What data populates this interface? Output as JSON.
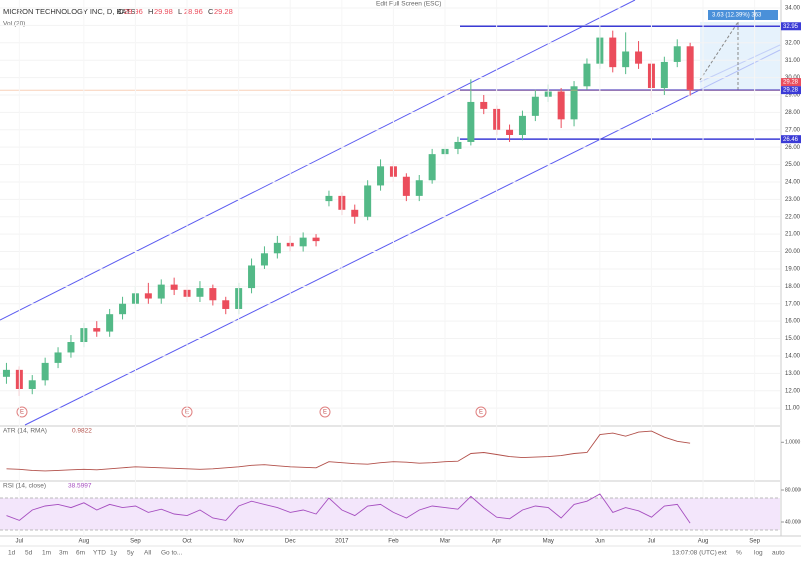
{
  "chart_data": {
    "type": "candlestick",
    "title": "MICRON TECHNOLOGY INC, D, BATS",
    "volume_label": "Vol (20)",
    "fullscreen_hint": "Edit Full Screen (ESC)",
    "ohlc_header": {
      "labels": [
        "O",
        "H",
        "L",
        "C"
      ],
      "values": [
        29.96,
        29.98,
        28.96,
        29.28
      ]
    },
    "categories": [
      null,
      "Jul",
      null,
      null,
      null,
      null,
      "Aug",
      null,
      null,
      null,
      "Sep",
      null,
      null,
      null,
      "Oct",
      null,
      null,
      null,
      "Nov",
      null,
      null,
      null,
      "Dec",
      null,
      null,
      null,
      "2017",
      null,
      null,
      null,
      "Feb",
      null,
      null,
      null,
      "Mar",
      null,
      null,
      null,
      "Apr",
      null,
      null,
      null,
      "May",
      null,
      null,
      null,
      "Jun",
      null,
      null,
      null,
      "Jul",
      null,
      null,
      null,
      "Aug",
      null,
      null,
      null,
      "Sep"
    ],
    "open": [
      12.8,
      13.2,
      12.1,
      12.6,
      13.6,
      14.2,
      14.8,
      15.6,
      15.4,
      16.4,
      17.0,
      17.6,
      17.3,
      18.1,
      17.8,
      17.4,
      17.9,
      17.2,
      16.7,
      17.9,
      19.2,
      19.9,
      20.5,
      20.3,
      20.8,
      22.9,
      23.2,
      22.4,
      22.0,
      23.8,
      24.9,
      24.3,
      23.2,
      24.1,
      25.6,
      25.9,
      26.3,
      28.6,
      28.2,
      27.0,
      26.7,
      27.8,
      28.9,
      29.2,
      27.6,
      29.5,
      30.8,
      32.3,
      30.6,
      31.5,
      30.8,
      29.4,
      30.9,
      31.8,
      null,
      null,
      null,
      null,
      null
    ],
    "high": [
      13.6,
      13.4,
      12.9,
      13.9,
      14.5,
      15.2,
      15.9,
      16.0,
      16.7,
      17.4,
      18.0,
      18.2,
      18.4,
      18.5,
      18.1,
      18.3,
      18.1,
      17.4,
      18.2,
      19.6,
      20.3,
      20.9,
      20.9,
      21.1,
      21.0,
      23.5,
      23.4,
      22.7,
      24.1,
      25.3,
      25.2,
      24.5,
      24.4,
      25.9,
      26.2,
      26.6,
      29.9,
      29.0,
      28.4,
      27.3,
      28.1,
      29.3,
      29.6,
      29.4,
      29.8,
      31.1,
      32.9,
      32.7,
      32.6,
      32.1,
      31.0,
      31.2,
      32.2,
      32.0,
      null,
      null,
      null,
      null,
      null
    ],
    "low": [
      12.4,
      11.7,
      11.8,
      12.3,
      13.3,
      13.9,
      14.5,
      15.1,
      15.1,
      16.1,
      16.7,
      17.0,
      17.0,
      17.5,
      17.1,
      17.1,
      16.9,
      16.4,
      16.4,
      17.6,
      19.0,
      19.6,
      20.0,
      20.0,
      20.3,
      22.6,
      22.1,
      21.6,
      21.8,
      23.5,
      24.0,
      22.9,
      22.9,
      23.9,
      25.3,
      25.6,
      26.1,
      27.9,
      26.7,
      26.3,
      26.4,
      27.5,
      28.6,
      27.1,
      27.2,
      29.3,
      30.5,
      30.3,
      30.2,
      30.5,
      28.8,
      29.0,
      30.6,
      28.96,
      null,
      null,
      null,
      null,
      null
    ],
    "close": [
      13.2,
      12.1,
      12.6,
      13.6,
      14.2,
      14.8,
      15.6,
      15.4,
      16.4,
      17.0,
      17.6,
      17.3,
      18.1,
      17.8,
      17.4,
      17.9,
      17.2,
      16.7,
      17.9,
      19.2,
      19.9,
      20.5,
      20.3,
      20.8,
      20.6,
      23.2,
      22.4,
      22.0,
      23.8,
      24.9,
      24.3,
      23.2,
      24.1,
      25.6,
      25.9,
      26.3,
      28.6,
      28.2,
      27.0,
      26.7,
      27.8,
      28.9,
      29.2,
      27.6,
      29.5,
      30.8,
      32.3,
      30.6,
      31.5,
      30.8,
      29.4,
      30.9,
      31.8,
      29.28,
      null,
      null,
      null,
      null,
      null
    ],
    "up_color": "#53b987",
    "down_color": "#eb4d5c",
    "ylim": [
      10.03,
      34.46
    ],
    "yticks": [
      {
        "value": 11,
        "label": "11.00"
      },
      {
        "value": 12,
        "label": "12.00"
      },
      {
        "value": 13,
        "label": "13.00"
      },
      {
        "value": 14,
        "label": "14.00"
      },
      {
        "value": 15,
        "label": "15.00"
      },
      {
        "value": 16,
        "label": "16.00"
      },
      {
        "value": 17,
        "label": "17.00"
      },
      {
        "value": 18,
        "label": "18.00"
      },
      {
        "value": 19,
        "label": "19.00"
      },
      {
        "value": 20,
        "label": "20.00"
      },
      {
        "value": 21,
        "label": "21.00"
      },
      {
        "value": 22,
        "label": "22.00"
      },
      {
        "value": 23,
        "label": "23.00"
      },
      {
        "value": 24,
        "label": "24.00"
      },
      {
        "value": 25,
        "label": "25.00"
      },
      {
        "value": 26,
        "label": "26.00"
      },
      {
        "value": 27,
        "label": "27.00"
      },
      {
        "value": 28,
        "label": "28.00"
      },
      {
        "value": 29,
        "label": "29.00"
      },
      {
        "value": 30,
        "label": "30.00"
      },
      {
        "value": 31,
        "label": "31.00"
      },
      {
        "value": 32,
        "label": "32.00"
      },
      {
        "value": 33,
        "label": "33.00"
      },
      {
        "value": 34,
        "label": "34.00"
      }
    ],
    "levels": [
      32.95,
      29.28,
      26.46
    ],
    "level_color": "#3b3bd6",
    "projection_label": "3.63 (12.39%) 363",
    "earnings_marker": "E",
    "atr": {
      "name": "ATR (14, RMA)",
      "current": 0.9822,
      "color": "#b2504a",
      "values": [
        0.48,
        0.47,
        0.45,
        0.44,
        0.45,
        0.46,
        0.47,
        0.46,
        0.48,
        0.5,
        0.52,
        0.51,
        0.5,
        0.49,
        0.48,
        0.47,
        0.48,
        0.5,
        0.52,
        0.55,
        0.56,
        0.54,
        0.52,
        0.51,
        0.5,
        0.62,
        0.6,
        0.58,
        0.57,
        0.6,
        0.62,
        0.61,
        0.59,
        0.6,
        0.62,
        0.63,
        0.78,
        0.8,
        0.76,
        0.72,
        0.7,
        0.71,
        0.72,
        0.74,
        0.78,
        0.8,
        1.15,
        1.18,
        1.12,
        1.2,
        1.22,
        1.1,
        1.02,
        0.9822
      ],
      "ylim": [
        0.3,
        1.3
      ],
      "yticks": [
        {
          "value": 1,
          "label": "1.0000"
        }
      ]
    },
    "rsi": {
      "name": "RSI (14, close)",
      "current": 38.5997,
      "color": "#a64fc0",
      "values": [
        48,
        42,
        55,
        60,
        62,
        58,
        64,
        55,
        62,
        58,
        60,
        52,
        56,
        50,
        48,
        55,
        45,
        42,
        60,
        66,
        62,
        58,
        52,
        55,
        50,
        70,
        55,
        48,
        60,
        62,
        52,
        45,
        55,
        60,
        58,
        56,
        72,
        58,
        46,
        44,
        55,
        60,
        58,
        45,
        62,
        66,
        75,
        52,
        58,
        54,
        46,
        60,
        62,
        38.5997
      ],
      "ylim": [
        23.75,
        90
      ],
      "yticks": [
        {
          "value": 80,
          "label": "80.0000"
        },
        {
          "value": 40,
          "label": "40.0000"
        }
      ],
      "band": [
        30,
        70
      ]
    },
    "toolbar": [
      "1d",
      "5d",
      "1m",
      "3m",
      "6m",
      "YTD",
      "1y",
      "5y",
      "All",
      "Go to..."
    ],
    "clock": "13:07:08 (UTC)",
    "scale_options": [
      "ext",
      "%",
      "log",
      "auto"
    ]
  }
}
